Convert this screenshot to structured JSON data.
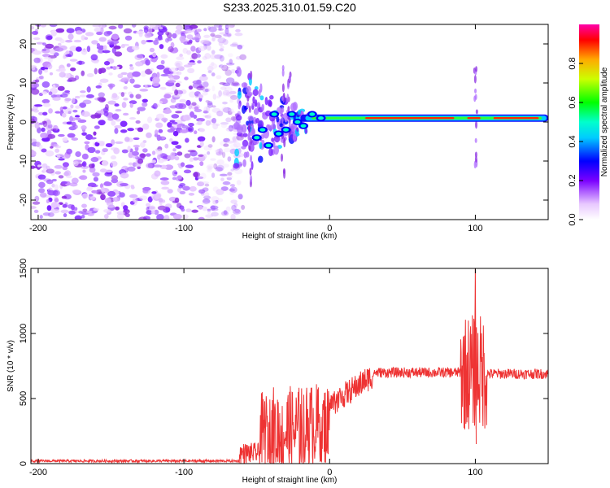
{
  "title": "S233.2025.310.01.59.C20",
  "chart_data": [
    {
      "type": "heatmap",
      "name": "spectrogram",
      "xlabel": "Height of straight line (km)",
      "ylabel": "Frequency (Hz)",
      "xlim": [
        -205,
        150
      ],
      "ylim": [
        -25,
        25
      ],
      "xticks": [
        -200,
        -100,
        0,
        100
      ],
      "yticks": [
        -20,
        -10,
        0,
        10,
        20
      ],
      "xtick_labels": [
        "-200",
        "-100",
        "0",
        "100"
      ],
      "ytick_labels": [
        "-20",
        "-10",
        "0",
        "10",
        "20"
      ],
      "noise_region_x": [
        -205,
        -65
      ],
      "signal_freq_hz": 1,
      "signal_start_x": -20,
      "colorbar": {
        "label": "Normalized spectral amplitude",
        "range": [
          0,
          1
        ],
        "ticks": [
          0.0,
          0.2,
          0.4,
          0.6,
          0.8
        ],
        "tick_labels": [
          "0.0",
          "0.2",
          "0.4",
          "0.6",
          "0.8"
        ]
      }
    },
    {
      "type": "line",
      "name": "snr",
      "xlabel": "Height of straight line (km)",
      "ylabel": "SNR (10 * v/v)",
      "xlim": [
        -205,
        150
      ],
      "ylim": [
        0,
        1500
      ],
      "xticks": [
        -200,
        -100,
        0,
        100
      ],
      "yticks": [
        0,
        500,
        1000,
        1500
      ],
      "xtick_labels": [
        "-200",
        "-100",
        "0",
        "100"
      ],
      "ytick_labels": [
        "0",
        "500",
        "1000",
        "1500"
      ],
      "color": "#ee3333",
      "segments": [
        {
          "x0": -205,
          "x1": -62,
          "base": 20,
          "noise": 10
        },
        {
          "x0": -62,
          "x1": -48,
          "base": 80,
          "noise": 80
        },
        {
          "x0": -48,
          "x1": -40,
          "base": 250,
          "noise": 300
        },
        {
          "x0": -40,
          "x1": -18,
          "base": 250,
          "noise": 350
        },
        {
          "x0": -18,
          "x1": 0,
          "base": 300,
          "noise": 320
        },
        {
          "x0": 0,
          "x1": 30,
          "base": 560,
          "noise": 100
        },
        {
          "x0": 30,
          "x1": 90,
          "base": 700,
          "noise": 40
        },
        {
          "x0": 90,
          "x1": 108,
          "base": 700,
          "noise": 450
        },
        {
          "x0": 108,
          "x1": 150,
          "base": 690,
          "noise": 40
        }
      ],
      "peak": {
        "x": 100,
        "y": 1500
      }
    }
  ]
}
